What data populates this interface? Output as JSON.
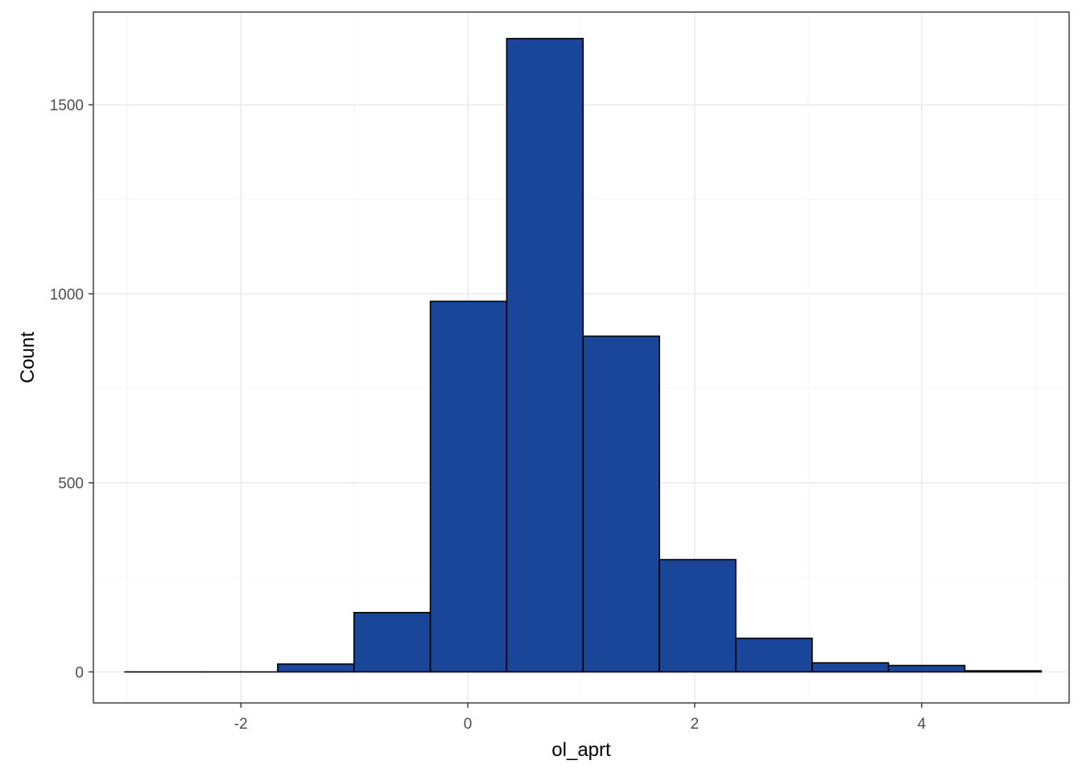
{
  "chart_data": {
    "type": "bar",
    "title": "",
    "xlabel": "ol_aprt",
    "ylabel": "Count",
    "xlim": [
      -3.3,
      5.3
    ],
    "ylim": [
      -82,
      1745
    ],
    "x_ticks": [
      -2,
      0,
      2,
      4
    ],
    "y_ticks": [
      0,
      500,
      1000,
      1500
    ],
    "x_minor_grid": [
      -3,
      -1,
      1,
      3,
      5
    ],
    "y_minor_grid": [
      250,
      750,
      1250
    ],
    "grid": true,
    "legend": "none",
    "bin_width": 0.673,
    "bins": [
      {
        "x_start": -3.022,
        "x_end": -2.349,
        "count": 0
      },
      {
        "x_start": -2.349,
        "x_end": -1.676,
        "count": 0
      },
      {
        "x_start": -1.676,
        "x_end": -1.003,
        "count": 21
      },
      {
        "x_start": -1.003,
        "x_end": -0.33,
        "count": 157
      },
      {
        "x_start": -0.33,
        "x_end": 0.343,
        "count": 980
      },
      {
        "x_start": 0.343,
        "x_end": 1.016,
        "count": 1675
      },
      {
        "x_start": 1.016,
        "x_end": 1.689,
        "count": 888
      },
      {
        "x_start": 1.689,
        "x_end": 2.362,
        "count": 297
      },
      {
        "x_start": 2.362,
        "x_end": 3.035,
        "count": 89
      },
      {
        "x_start": 3.035,
        "x_end": 3.708,
        "count": 24
      },
      {
        "x_start": 3.708,
        "x_end": 4.381,
        "count": 17
      },
      {
        "x_start": 4.381,
        "x_end": 5.054,
        "count": 3
      }
    ],
    "colors": {
      "bar_fill": "#1a4699",
      "bar_outline": "#000000",
      "grid_major": "#ebebeb",
      "grid_minor": "#f5f5f5",
      "panel_border": "#333333",
      "tick_label": "#4d4d4d"
    }
  }
}
